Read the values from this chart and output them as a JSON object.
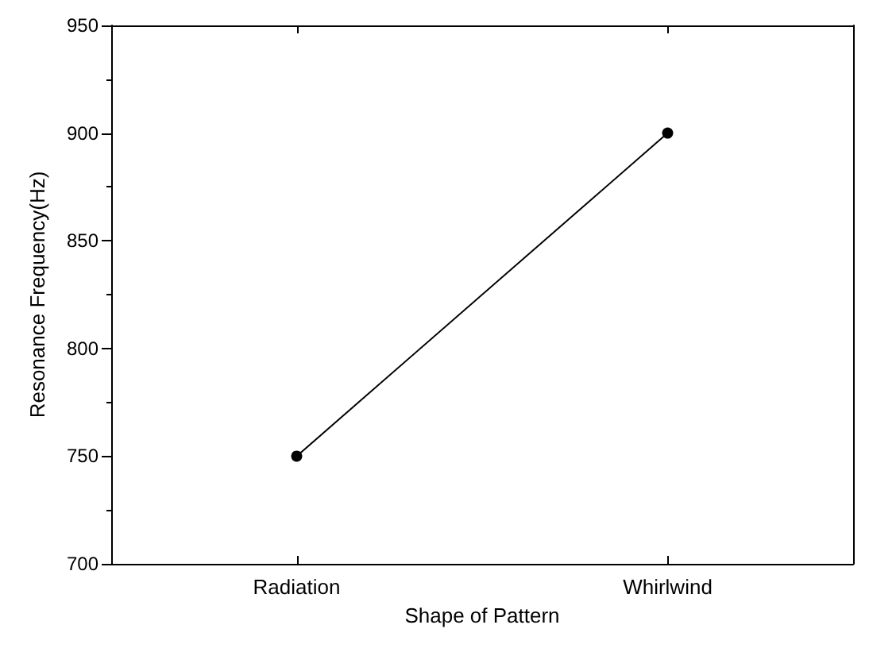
{
  "chart_data": {
    "type": "line",
    "xlabel": "Shape of Pattern",
    "ylabel": "Resonance Frequency(Hz)",
    "categories": [
      "Radiation",
      "Whirlwind"
    ],
    "series": [
      {
        "color": "#000000",
        "values": [
          750,
          900
        ]
      }
    ],
    "ylim": [
      700,
      950
    ],
    "yticks": [
      700,
      750,
      800,
      850,
      900,
      950
    ],
    "marker": "circle",
    "line_style": "solid",
    "grid": false
  }
}
